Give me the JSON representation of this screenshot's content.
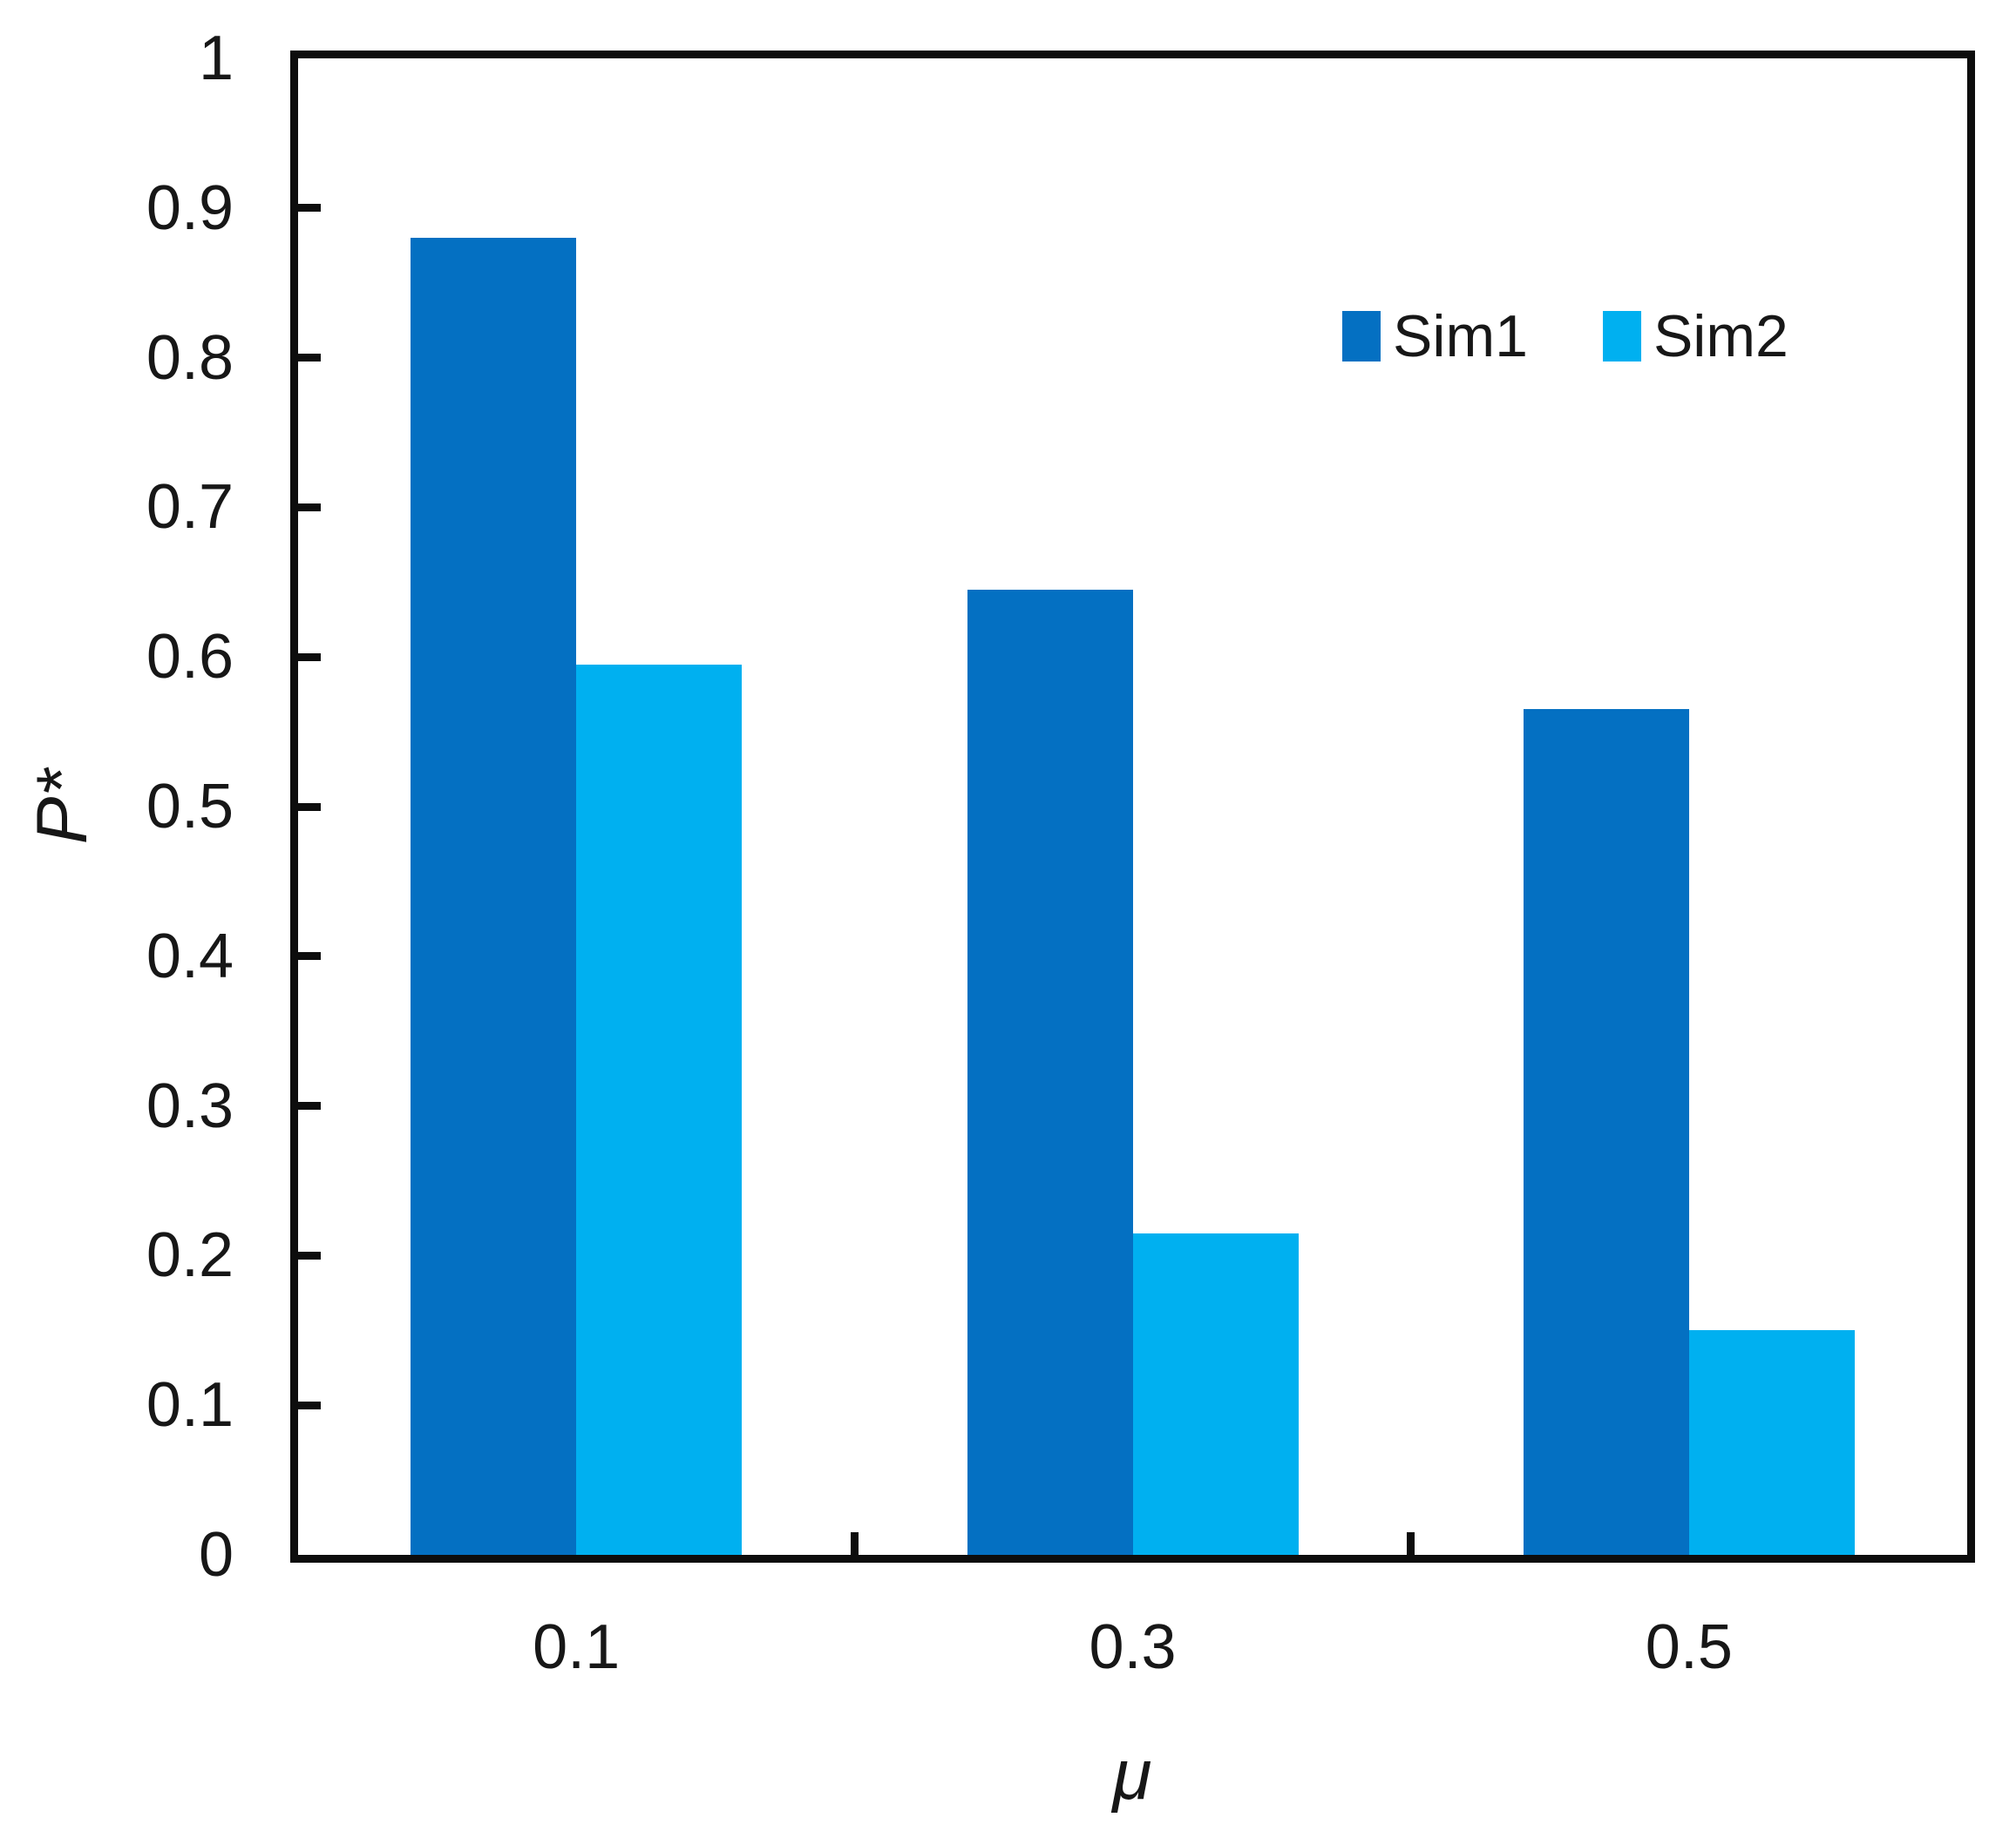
{
  "chart_data": {
    "type": "bar",
    "categories": [
      "0.1",
      "0.3",
      "0.5"
    ],
    "series": [
      {
        "name": "Sim1",
        "color": "#0470C2",
        "values": [
          0.88,
          0.645,
          0.565
        ]
      },
      {
        "name": "Sim2",
        "color": "#00B0F0",
        "values": [
          0.595,
          0.215,
          0.15
        ]
      }
    ],
    "title": "",
    "xlabel": "μ",
    "ylabel": "P*",
    "ylim": [
      0,
      1
    ],
    "ytick_step": 0.1,
    "ytick_labels": [
      "0",
      "0.1",
      "0.2",
      "0.3",
      "0.4",
      "0.5",
      "0.6",
      "0.7",
      "0.8",
      "0.9",
      "1"
    ],
    "grid": false,
    "legend_position": "top-right-inside",
    "axis_color": "#0d0d0d",
    "text_color": "#171717",
    "background_color": "#ffffff"
  }
}
